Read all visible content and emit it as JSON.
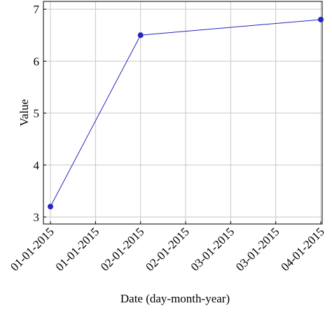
{
  "chart_data": {
    "type": "line",
    "xlabel": "Date (day-month-year)",
    "ylabel": "Value",
    "x": [
      "01-01-2015",
      "02-01-2015",
      "04-01-2015"
    ],
    "series": [
      {
        "color": "#2626c0",
        "values": [
          3.2,
          6.5,
          6.8
        ]
      }
    ],
    "xlim": [
      "31-12-2014 22:08",
      "04-01-2015 00:22"
    ],
    "xticks": [
      {
        "value": "01-01-2015 00:00",
        "label": "01-01-2015"
      },
      {
        "value": "01-01-2015 12:00",
        "label": "01-01-2015"
      },
      {
        "value": "02-01-2015 00:00",
        "label": "02-01-2015"
      },
      {
        "value": "02-01-2015 12:00",
        "label": "02-01-2015"
      },
      {
        "value": "03-01-2015 00:00",
        "label": "03-01-2015"
      },
      {
        "value": "03-01-2015 12:00",
        "label": "03-01-2015"
      },
      {
        "value": "04-01-2015 00:00",
        "label": "04-01-2015"
      }
    ],
    "ylim": [
      2.865,
      7.15
    ],
    "yticks": [
      3,
      4,
      5,
      6,
      7
    ],
    "grid": true
  }
}
